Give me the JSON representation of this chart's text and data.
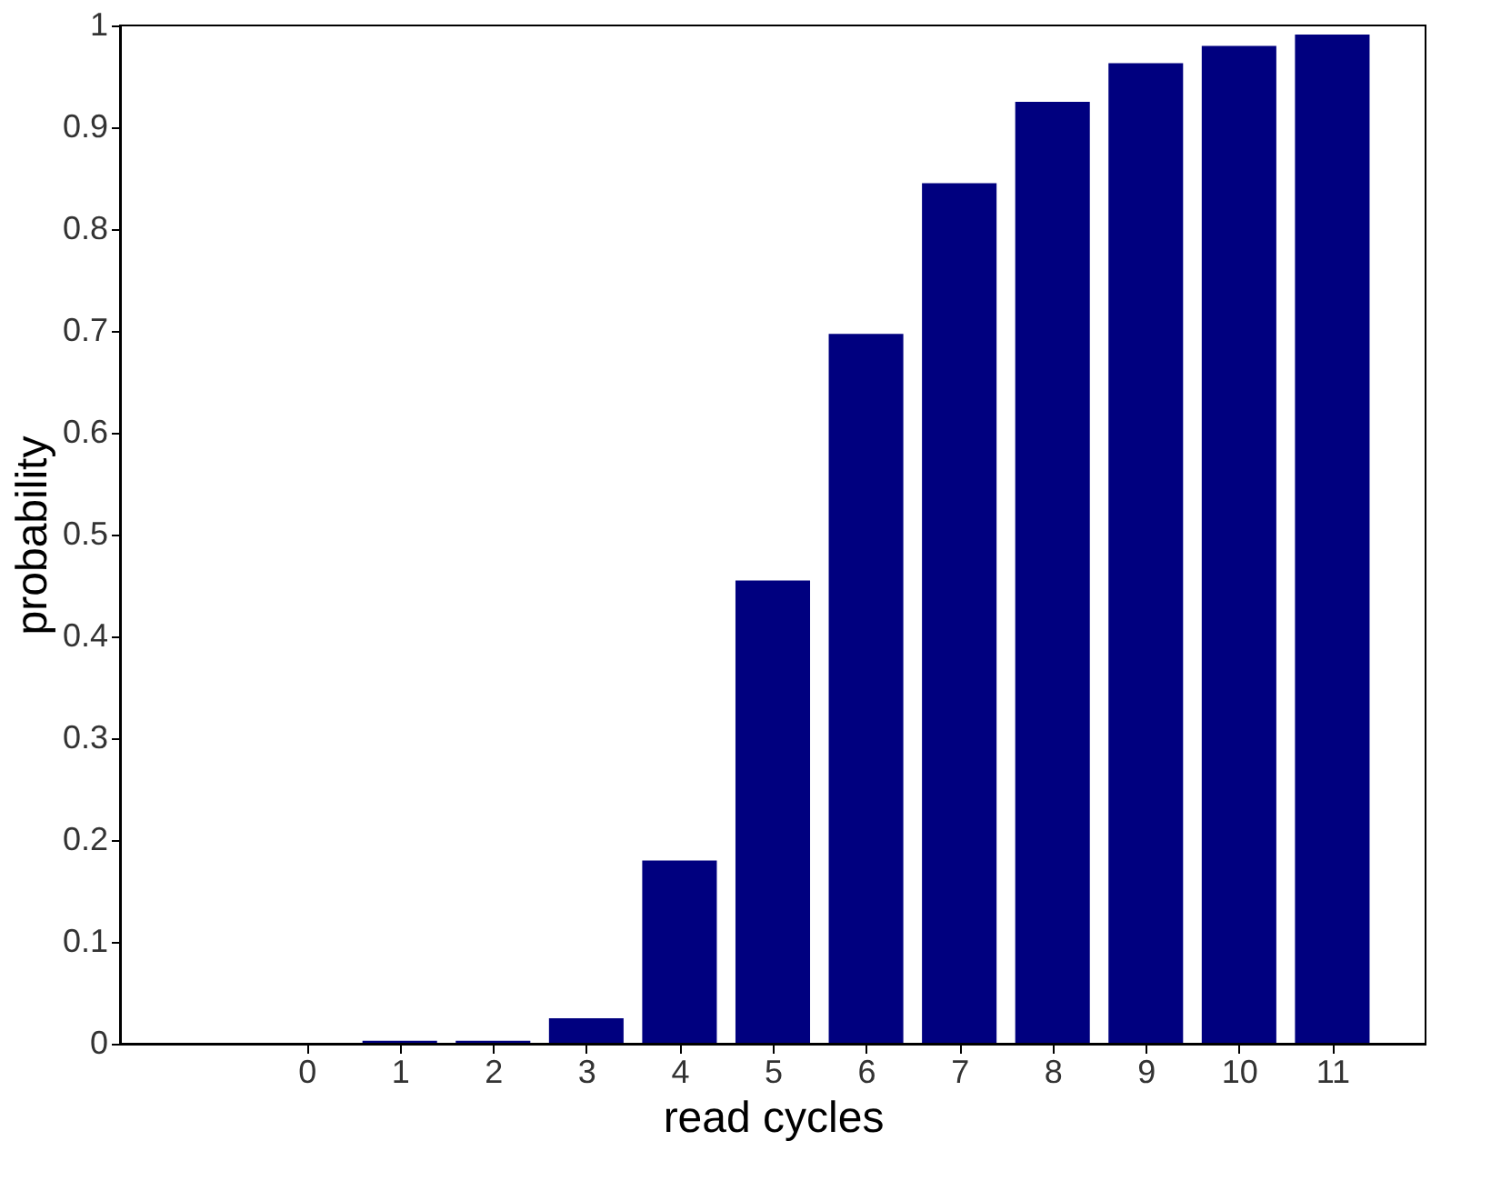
{
  "chart_data": {
    "type": "bar",
    "xlabel": "read cycles",
    "ylabel": "probability",
    "x": [
      0,
      1,
      2,
      3,
      4,
      5,
      6,
      7,
      8,
      9,
      10,
      11
    ],
    "series": [
      {
        "color": "#00007f",
        "values": [
          0,
          0.003,
          0.003,
          0.025,
          0.18,
          0.455,
          0.697,
          0.845,
          0.925,
          0.963,
          0.98,
          0.991
        ]
      }
    ],
    "xlim": [
      -2,
      12
    ],
    "xticks": [
      0,
      1,
      2,
      3,
      4,
      5,
      6,
      7,
      8,
      9,
      10,
      11
    ],
    "ylim": [
      0,
      1
    ],
    "yticks": [
      {
        "value": 0,
        "label": "0"
      },
      0.1,
      0.2,
      0.3,
      0.4,
      0.5,
      0.6,
      0.7,
      0.8,
      0.9,
      {
        "value": 1,
        "label": "1"
      }
    ],
    "grid": false,
    "legend": false
  }
}
